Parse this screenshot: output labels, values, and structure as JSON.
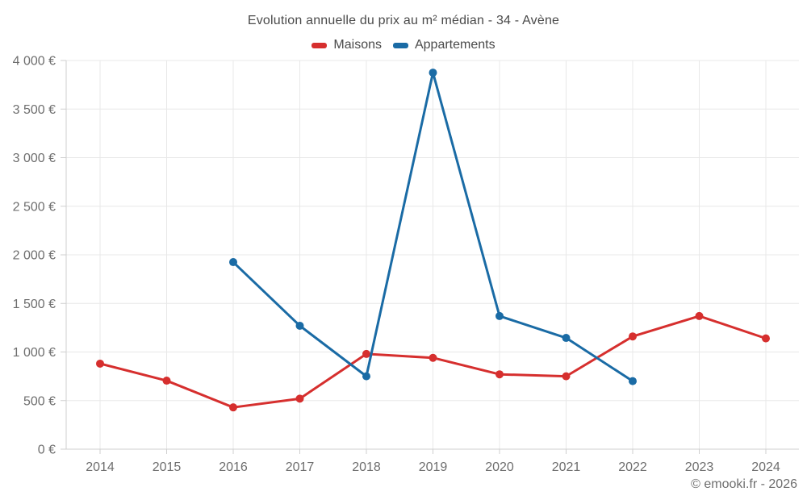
{
  "chart_data": {
    "type": "line",
    "title": "Evolution annuelle du prix au m² médian - 34 - Avène",
    "categories": [
      "2014",
      "2015",
      "2016",
      "2017",
      "2018",
      "2019",
      "2020",
      "2021",
      "2022",
      "2023",
      "2024"
    ],
    "series": [
      {
        "name": "Maisons",
        "color": "#d62f2e",
        "values": [
          880,
          705,
          430,
          520,
          980,
          940,
          770,
          750,
          1160,
          1370,
          1140
        ]
      },
      {
        "name": "Appartements",
        "color": "#1a6ba5",
        "values": [
          null,
          null,
          1925,
          1270,
          750,
          3875,
          1370,
          1145,
          700,
          null,
          null
        ]
      }
    ],
    "ylabel": "",
    "xlabel": "",
    "ylim": [
      0,
      4000
    ],
    "y_tick_step": 500,
    "y_tick_suffix": "€",
    "grid": true,
    "legend_position": "top"
  },
  "footer": {
    "copyright": "© emooki.fr - 2026"
  }
}
